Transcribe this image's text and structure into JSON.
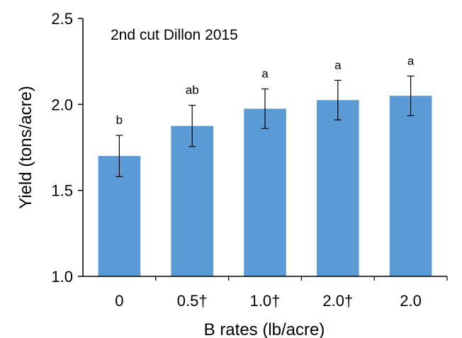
{
  "chart_data": {
    "type": "bar",
    "title": "2nd cut Dillon 2015",
    "xlabel": "B rates (lb/acre)",
    "ylabel": "Yield (tons/acre)",
    "categories": [
      "0",
      "0.5†",
      "1.0†",
      "2.0†",
      "2.0"
    ],
    "values": [
      1.7,
      1.875,
      1.975,
      2.025,
      2.05
    ],
    "error": [
      0.12,
      0.12,
      0.115,
      0.115,
      0.115
    ],
    "annotations": [
      "b",
      "ab",
      "a",
      "a",
      "a"
    ],
    "ylim": [
      1.0,
      2.5
    ],
    "yticks": [
      "1.0",
      "1.5",
      "2.0",
      "2.5"
    ],
    "ytick_values": [
      1.0,
      1.5,
      2.0,
      2.5
    ],
    "grid": false,
    "legend": "none",
    "colors": {
      "bar": "#5b9bd5",
      "axis": "#000000",
      "error_bar": "#000000"
    }
  }
}
